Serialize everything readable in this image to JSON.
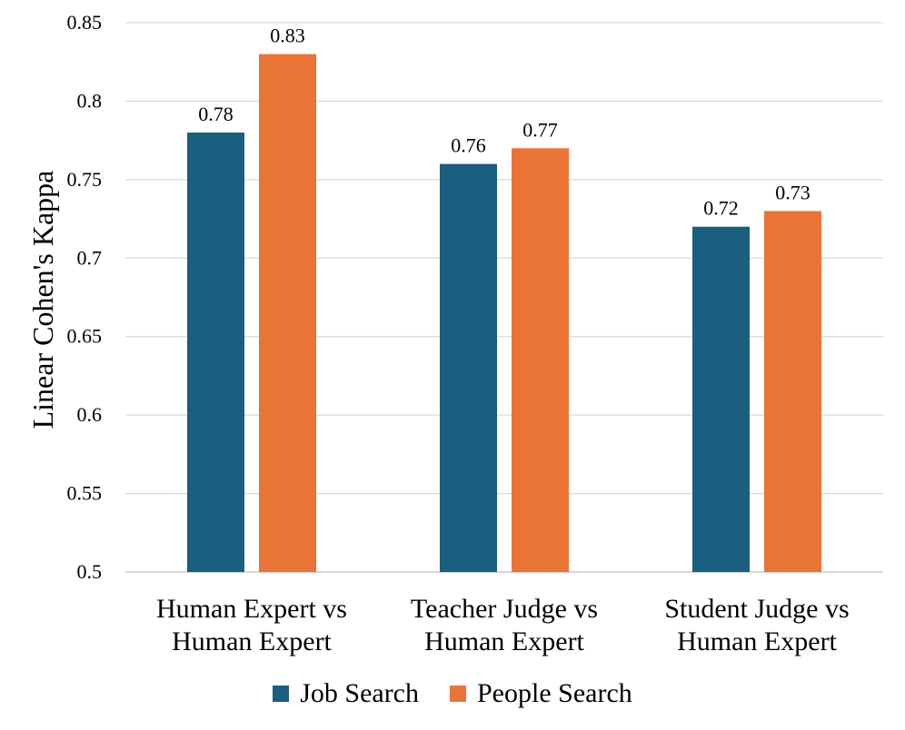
{
  "chart_data": {
    "type": "bar",
    "title": "",
    "xlabel": "",
    "ylabel": "Linear Cohen's Kappa",
    "ylim": [
      0.5,
      0.85
    ],
    "yticks": [
      "0.5",
      "0.55",
      "0.6",
      "0.65",
      "0.7",
      "0.75",
      "0.8",
      "0.85"
    ],
    "grid": true,
    "legend_position": "bottom",
    "categories": [
      [
        "Human Expert vs",
        "Human Expert"
      ],
      [
        "Teacher Judge vs",
        "Human Expert"
      ],
      [
        "Student Judge vs",
        "Human Expert"
      ]
    ],
    "series": [
      {
        "name": "Job Search",
        "color": "#1a5e80",
        "values": [
          0.78,
          0.76,
          0.72
        ],
        "labels": [
          "0.78",
          "0.76",
          "0.72"
        ]
      },
      {
        "name": "People Search",
        "color": "#ea7435",
        "values": [
          0.83,
          0.77,
          0.73
        ],
        "labels": [
          "0.83",
          "0.77",
          "0.73"
        ]
      }
    ]
  }
}
